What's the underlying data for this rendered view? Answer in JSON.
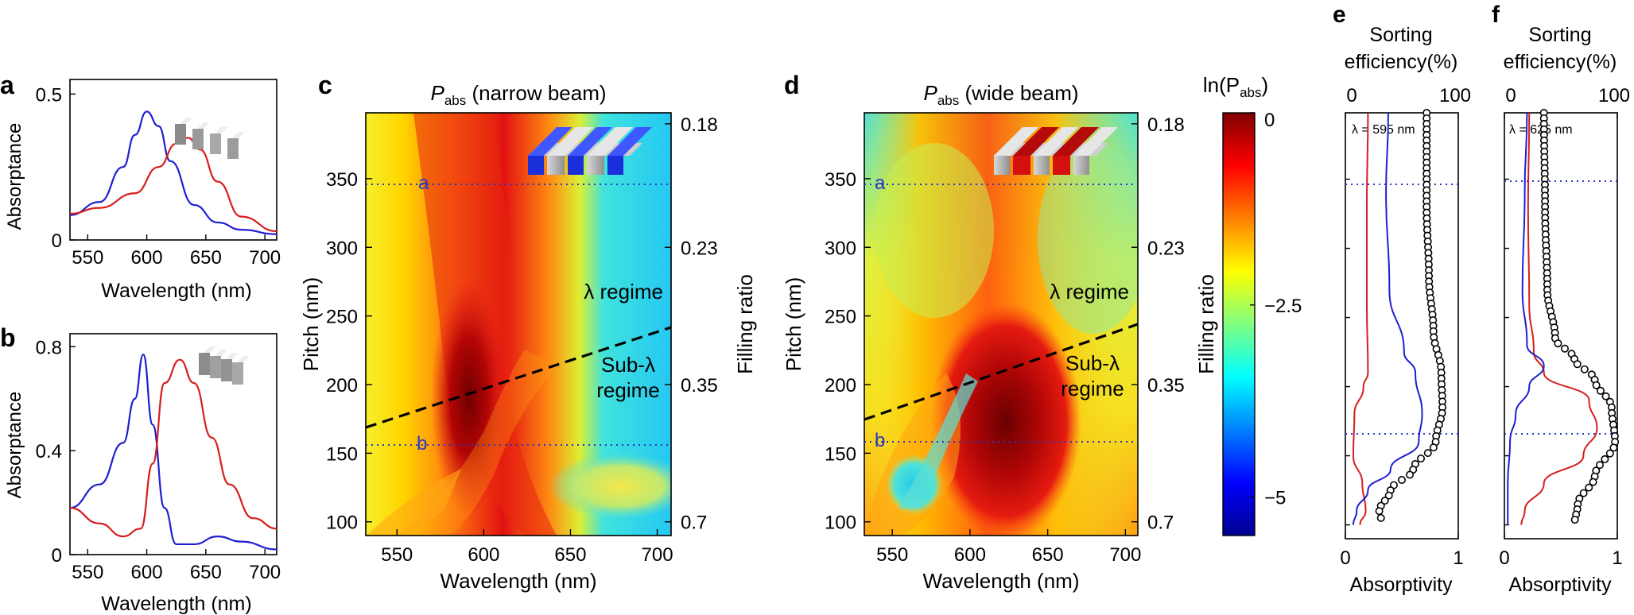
{
  "colors": {
    "blue": "#1f1fd1",
    "red": "#d61e1e",
    "circle": "#000000",
    "dotted": "#2436c8",
    "dashed": "#000000"
  },
  "panels": {
    "a": {
      "letter": "a",
      "ylabel": "Absorptance",
      "xlabel": "Wavelength (nm)",
      "xticks": [
        "550",
        "600",
        "650",
        "700"
      ],
      "yticks": [
        "0",
        "0.5"
      ],
      "inset_icon": "grating-icon"
    },
    "b": {
      "letter": "b",
      "ylabel": "Absorptance",
      "xlabel": "Wavelength (nm)",
      "xticks": [
        "550",
        "600",
        "650",
        "700"
      ],
      "yticks": [
        "0",
        "0.4",
        "0.8"
      ],
      "inset_icon": "grating-icon"
    },
    "c": {
      "letter": "c",
      "title_main": "P",
      "title_sub": "abs",
      "title_rest": " (narrow beam)",
      "ylabel": "Pitch (nm)",
      "xlabel": "Wavelength (nm)",
      "y2label": "Filling ratio",
      "xticks": [
        "550",
        "600",
        "650",
        "700"
      ],
      "yticks": [
        "100",
        "150",
        "200",
        "250",
        "300",
        "350"
      ],
      "y2ticks": [
        "0.18",
        "0.23",
        "0.35",
        "0.7"
      ],
      "label_a": "a",
      "label_b": "b",
      "regime_lambda": "λ regime",
      "regime_sub_1": "Sub-λ",
      "regime_sub_2": "regime",
      "inset_icon": "blue-grating-icon"
    },
    "d": {
      "letter": "d",
      "title_main": "P",
      "title_sub": "abs",
      "title_rest": " (wide beam)",
      "ylabel": "Pitch (nm)",
      "xlabel": "Wavelength (nm)",
      "y2label": "Filling ratio",
      "xticks": [
        "550",
        "600",
        "650",
        "700"
      ],
      "yticks": [
        "100",
        "150",
        "200",
        "250",
        "300",
        "350"
      ],
      "y2ticks": [
        "0.18",
        "0.23",
        "0.35",
        "0.7"
      ],
      "label_a": "a",
      "label_b": "b",
      "regime_lambda": "λ regime",
      "regime_sub_1": "Sub-λ",
      "regime_sub_2": "regime",
      "inset_icon": "red-grating-icon"
    },
    "colorbar": {
      "label_pre": "ln(P",
      "label_sub": "abs",
      "label_post": ")",
      "ticks": [
        "0",
        "−2.5",
        "−5"
      ]
    },
    "e": {
      "letter": "e",
      "top_label_1": "Sorting",
      "top_label_2": "efficiency(%)",
      "top_ticks": [
        "0",
        "100"
      ],
      "bottom_ticks": [
        "0",
        "1"
      ],
      "xlabel": "Absorptivity",
      "lambda_label": "λ = 595 nm"
    },
    "f": {
      "letter": "f",
      "top_label_1": "Sorting",
      "top_label_2": "efficiency(%)",
      "top_ticks": [
        "0",
        "100"
      ],
      "bottom_ticks": [
        "0",
        "1"
      ],
      "xlabel": "Absorptivity",
      "lambda_label": "λ = 625 nm"
    }
  },
  "chart_data": [
    {
      "panel": "a",
      "type": "line",
      "xlabel": "Wavelength (nm)",
      "ylabel": "Absorptance",
      "xlim": [
        535,
        710
      ],
      "ylim": [
        0,
        0.55
      ],
      "series": [
        {
          "name": "blue",
          "color": "#1f1fd1",
          "x": [
            535,
            560,
            580,
            590,
            600,
            610,
            620,
            640,
            660,
            680,
            710
          ],
          "y": [
            0.085,
            0.13,
            0.25,
            0.36,
            0.44,
            0.39,
            0.27,
            0.12,
            0.06,
            0.035,
            0.02
          ]
        },
        {
          "name": "red",
          "color": "#d61e1e",
          "x": [
            535,
            560,
            590,
            610,
            625,
            635,
            645,
            660,
            680,
            710
          ],
          "y": [
            0.09,
            0.11,
            0.16,
            0.25,
            0.33,
            0.35,
            0.31,
            0.2,
            0.08,
            0.03
          ]
        }
      ]
    },
    {
      "panel": "b",
      "type": "line",
      "xlabel": "Wavelength (nm)",
      "ylabel": "Absorptance",
      "xlim": [
        535,
        710
      ],
      "ylim": [
        0,
        0.85
      ],
      "series": [
        {
          "name": "blue",
          "color": "#1f1fd1",
          "x": [
            535,
            560,
            580,
            590,
            597,
            605,
            615,
            625,
            640,
            660,
            680,
            710
          ],
          "y": [
            0.18,
            0.27,
            0.43,
            0.6,
            0.77,
            0.5,
            0.18,
            0.04,
            0.04,
            0.07,
            0.05,
            0.02
          ]
        },
        {
          "name": "red",
          "color": "#d61e1e",
          "x": [
            535,
            560,
            580,
            595,
            605,
            615,
            628,
            640,
            655,
            670,
            690,
            710
          ],
          "y": [
            0.18,
            0.12,
            0.07,
            0.1,
            0.35,
            0.66,
            0.75,
            0.66,
            0.45,
            0.27,
            0.14,
            0.1
          ]
        }
      ]
    },
    {
      "panel": "c",
      "type": "heatmap",
      "title": "Pabs (narrow beam)",
      "xlabel": "Wavelength (nm)",
      "ylabel": "Pitch (nm)",
      "y2label": "Filling ratio",
      "xlim": [
        532,
        708
      ],
      "ylim": [
        90,
        398
      ],
      "zlim": [
        -5.5,
        0
      ],
      "dashed_line": {
        "x": [
          532,
          708
        ],
        "y": [
          175,
          245
        ]
      },
      "dotted_lines_pitch": [
        350,
        160
      ]
    },
    {
      "panel": "d",
      "type": "heatmap",
      "title": "Pabs (wide beam)",
      "xlabel": "Wavelength (nm)",
      "ylabel": "Pitch (nm)",
      "y2label": "Filling ratio",
      "xlim": [
        532,
        708
      ],
      "ylim": [
        90,
        398
      ],
      "zlim": [
        -5.5,
        0
      ],
      "dashed_line": {
        "x": [
          532,
          708
        ],
        "y": [
          178,
          245
        ]
      },
      "dotted_lines_pitch": [
        350,
        160
      ]
    },
    {
      "panel": "e",
      "type": "line",
      "xlabel": "Absorptivity",
      "top_label": "Sorting efficiency(%)",
      "xlim": [
        0,
        1
      ],
      "ylim": [
        90,
        398
      ],
      "series": [
        {
          "name": "red",
          "color": "#d61e1e",
          "y": [
            398,
            330,
            260,
            210,
            200,
            180,
            150,
            130,
            110,
            100
          ],
          "x": [
            0.2,
            0.19,
            0.19,
            0.2,
            0.16,
            0.08,
            0.07,
            0.15,
            0.18,
            0.13
          ]
        },
        {
          "name": "blue",
          "color": "#1f1fd1",
          "y": [
            398,
            340,
            270,
            225,
            210,
            180,
            160,
            140,
            125,
            110,
            100
          ],
          "x": [
            0.38,
            0.36,
            0.39,
            0.52,
            0.62,
            0.68,
            0.65,
            0.4,
            0.2,
            0.1,
            0.07
          ]
        },
        {
          "name": "circles",
          "color": "#000000",
          "y": [
            398,
            330,
            280,
            240,
            210,
            185,
            160,
            140,
            125,
            110,
            100
          ],
          "x": [
            0.72,
            0.72,
            0.74,
            0.78,
            0.85,
            0.86,
            0.8,
            0.6,
            0.4,
            0.3,
            0.33
          ]
        }
      ]
    },
    {
      "panel": "f",
      "type": "line",
      "xlabel": "Absorptivity",
      "top_label": "Sorting efficiency(%)",
      "xlim": [
        0,
        1
      ],
      "ylim": [
        90,
        398
      ],
      "series": [
        {
          "name": "red",
          "color": "#d61e1e",
          "y": [
            398,
            330,
            260,
            225,
            210,
            190,
            170,
            150,
            130,
            110,
            100
          ],
          "x": [
            0.22,
            0.21,
            0.22,
            0.26,
            0.35,
            0.75,
            0.82,
            0.7,
            0.35,
            0.18,
            0.15
          ]
        },
        {
          "name": "blue",
          "color": "#1f1fd1",
          "y": [
            398,
            340,
            270,
            230,
            215,
            200,
            180,
            160,
            130,
            100
          ],
          "x": [
            0.2,
            0.18,
            0.16,
            0.2,
            0.35,
            0.22,
            0.1,
            0.05,
            0.03,
            0.03
          ]
        },
        {
          "name": "circles",
          "color": "#000000",
          "y": [
            398,
            330,
            270,
            235,
            220,
            205,
            185,
            160,
            135,
            115,
            100
          ],
          "x": [
            0.35,
            0.36,
            0.38,
            0.45,
            0.62,
            0.8,
            0.95,
            0.98,
            0.8,
            0.65,
            0.62
          ]
        }
      ]
    }
  ]
}
